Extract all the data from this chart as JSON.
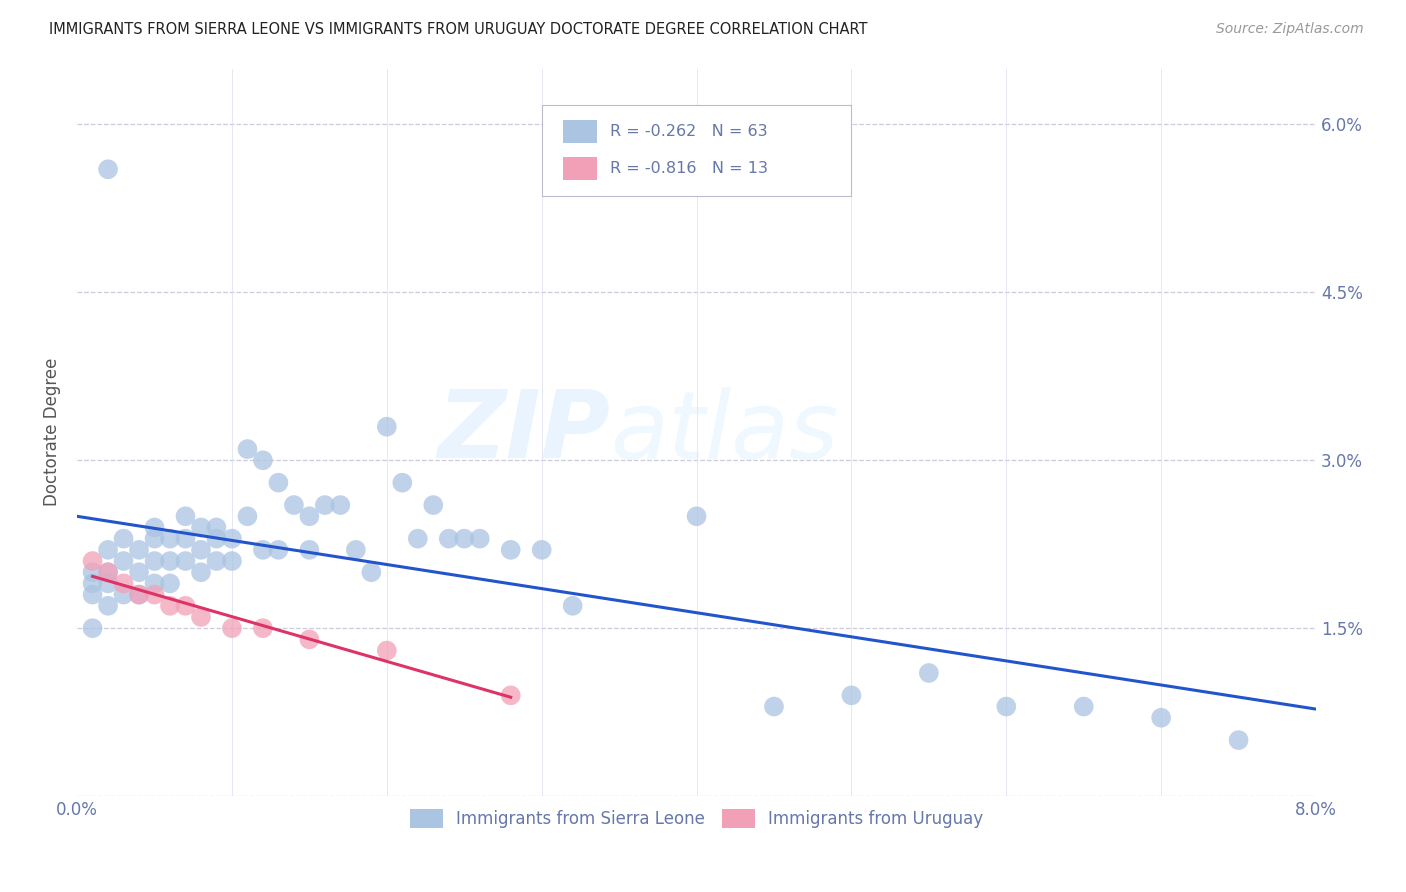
{
  "title": "IMMIGRANTS FROM SIERRA LEONE VS IMMIGRANTS FROM URUGUAY DOCTORATE DEGREE CORRELATION CHART",
  "source": "Source: ZipAtlas.com",
  "ylabel": "Doctorate Degree",
  "x_min": 0.0,
  "x_max": 0.08,
  "y_min": 0.0,
  "y_max": 0.065,
  "x_ticks": [
    0.0,
    0.01,
    0.02,
    0.03,
    0.04,
    0.05,
    0.06,
    0.07,
    0.08
  ],
  "y_ticks": [
    0.0,
    0.015,
    0.03,
    0.045,
    0.06
  ],
  "y_tick_labels_right": [
    "",
    "1.5%",
    "3.0%",
    "4.5%",
    "6.0%"
  ],
  "legend1_label": "Immigrants from Sierra Leone",
  "legend2_label": "Immigrants from Uruguay",
  "R1": "-0.262",
  "N1": "63",
  "R2": "-0.816",
  "N2": "13",
  "color_blue": "#aac4e2",
  "color_pink": "#f2a0b8",
  "line_blue": "#2255cc",
  "line_pink": "#dd3366",
  "watermark_zip": "ZIP",
  "watermark_atlas": "atlas",
  "sierra_leone_x": [
    0.001,
    0.001,
    0.001,
    0.001,
    0.002,
    0.002,
    0.002,
    0.002,
    0.003,
    0.003,
    0.003,
    0.004,
    0.004,
    0.004,
    0.005,
    0.005,
    0.005,
    0.005,
    0.006,
    0.006,
    0.006,
    0.007,
    0.007,
    0.007,
    0.008,
    0.008,
    0.008,
    0.009,
    0.009,
    0.009,
    0.01,
    0.01,
    0.011,
    0.011,
    0.012,
    0.012,
    0.013,
    0.013,
    0.014,
    0.015,
    0.015,
    0.016,
    0.017,
    0.018,
    0.019,
    0.02,
    0.021,
    0.022,
    0.023,
    0.024,
    0.025,
    0.026,
    0.028,
    0.03,
    0.032,
    0.04,
    0.045,
    0.05,
    0.055,
    0.06,
    0.065,
    0.07,
    0.075
  ],
  "sierra_leone_y": [
    0.02,
    0.019,
    0.018,
    0.015,
    0.022,
    0.02,
    0.019,
    0.017,
    0.023,
    0.021,
    0.018,
    0.022,
    0.02,
    0.018,
    0.024,
    0.023,
    0.021,
    0.019,
    0.023,
    0.021,
    0.019,
    0.025,
    0.023,
    0.021,
    0.024,
    0.022,
    0.02,
    0.024,
    0.023,
    0.021,
    0.023,
    0.021,
    0.031,
    0.025,
    0.03,
    0.022,
    0.028,
    0.022,
    0.026,
    0.025,
    0.022,
    0.026,
    0.026,
    0.022,
    0.02,
    0.033,
    0.028,
    0.023,
    0.026,
    0.023,
    0.023,
    0.023,
    0.022,
    0.022,
    0.017,
    0.025,
    0.008,
    0.009,
    0.011,
    0.008,
    0.008,
    0.007,
    0.005
  ],
  "sierra_leone_outlier_x": [
    0.002
  ],
  "sierra_leone_outlier_y": [
    0.056
  ],
  "uruguay_x": [
    0.001,
    0.002,
    0.003,
    0.004,
    0.005,
    0.006,
    0.007,
    0.008,
    0.01,
    0.012,
    0.015,
    0.02,
    0.028
  ],
  "uruguay_y": [
    0.021,
    0.02,
    0.019,
    0.018,
    0.018,
    0.017,
    0.017,
    0.016,
    0.015,
    0.015,
    0.014,
    0.013,
    0.009
  ]
}
